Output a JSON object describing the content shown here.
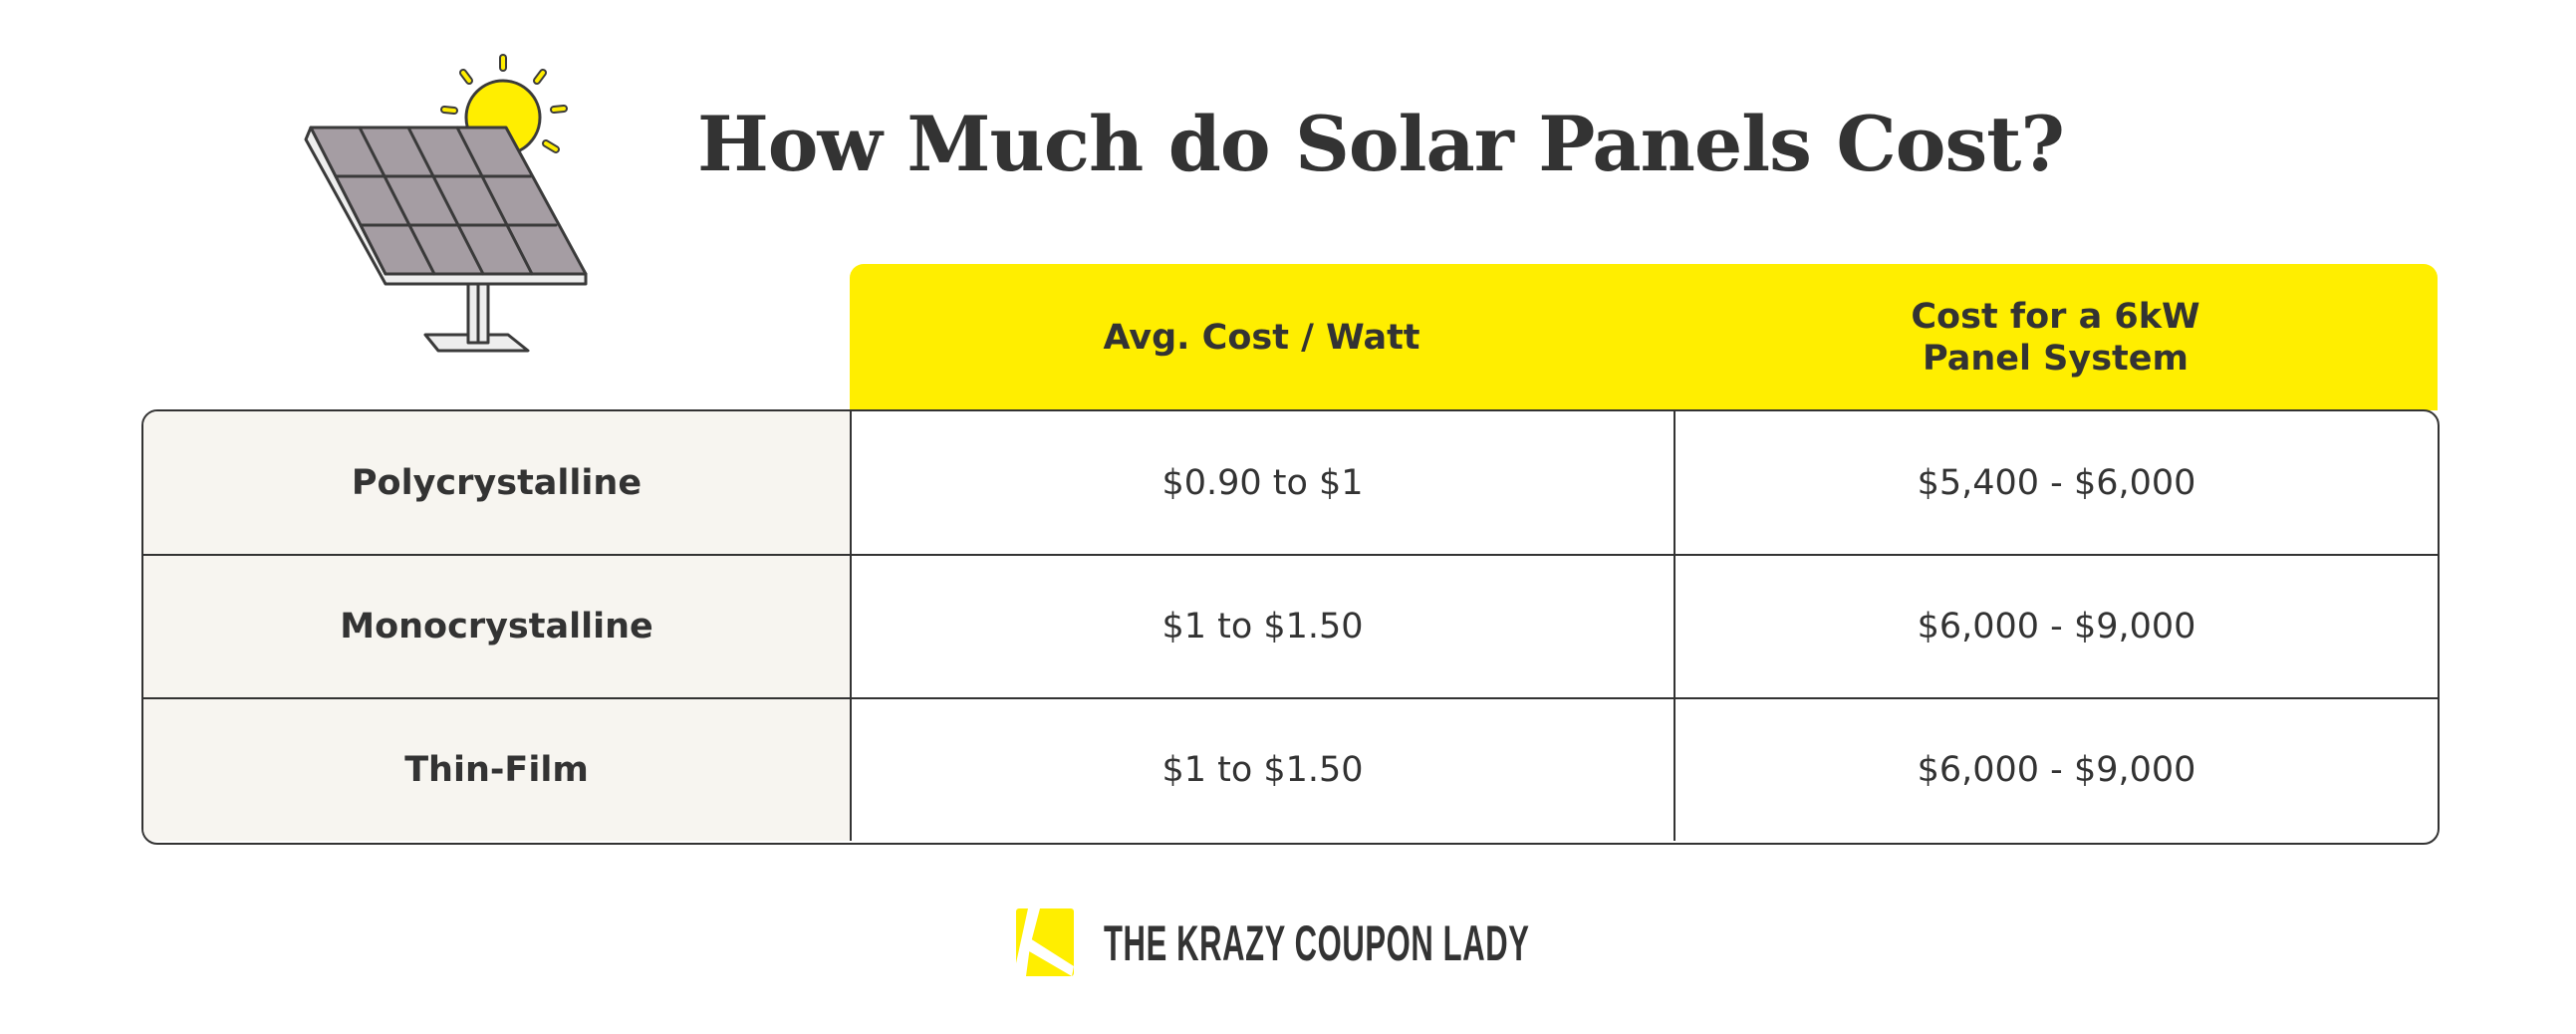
{
  "title": "How Much do Solar Panels Cost?",
  "table": {
    "headers": [
      "Avg. Cost / Watt",
      "Cost for a 6kW Panel System"
    ],
    "rows": [
      {
        "type": "Polycrystalline",
        "cost_per_watt": "$0.90 to $1",
        "system_cost": "$5,400 - $6,000"
      },
      {
        "type": "Monocrystalline",
        "cost_per_watt": "$1 to $1.50",
        "system_cost": "$6,000 - $9,000"
      },
      {
        "type": "Thin-Film",
        "cost_per_watt": "$1 to $1.50",
        "system_cost": "$6,000 - $9,000"
      }
    ]
  },
  "brand": {
    "name": "THE KRAZY COUPON LADY"
  },
  "colors": {
    "accent": "#FFEE00",
    "text": "#333333",
    "row_header_bg": "#F7F5F0"
  }
}
